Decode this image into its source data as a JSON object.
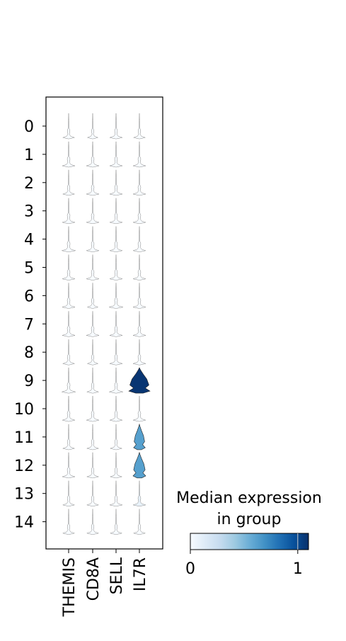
{
  "chart_data": {
    "type": "violin",
    "genes": [
      "THEMIS",
      "CD8A",
      "SELL",
      "IL7R"
    ],
    "groups": [
      "0",
      "1",
      "2",
      "3",
      "4",
      "5",
      "6",
      "7",
      "8",
      "9",
      "10",
      "11",
      "12",
      "13",
      "14"
    ],
    "colorbar": {
      "title_line1": "Median expression",
      "title_line2": "in group",
      "ticks": [
        {
          "value": 0,
          "label": "0"
        },
        {
          "value": 1,
          "label": "1"
        }
      ],
      "max": 1.1,
      "cmap": "Blues"
    },
    "median_expression": [
      [
        0.0,
        0.0,
        0.0,
        0.0
      ],
      [
        0.0,
        0.0,
        0.0,
        0.0
      ],
      [
        0.0,
        0.0,
        0.0,
        0.0
      ],
      [
        0.0,
        0.0,
        0.0,
        0.0
      ],
      [
        0.0,
        0.0,
        0.0,
        0.0
      ],
      [
        0.0,
        0.0,
        0.0,
        0.0
      ],
      [
        0.0,
        0.0,
        0.0,
        0.0
      ],
      [
        0.0,
        0.0,
        0.0,
        0.0
      ],
      [
        0.0,
        0.0,
        0.0,
        0.0
      ],
      [
        0.0,
        0.0,
        0.0,
        1.08
      ],
      [
        0.0,
        0.0,
        0.0,
        0.0
      ],
      [
        0.0,
        0.0,
        0.0,
        0.62
      ],
      [
        0.0,
        0.0,
        0.0,
        0.62
      ],
      [
        0.0,
        0.0,
        0.0,
        0.08
      ],
      [
        0.0,
        0.0,
        0.0,
        0.0
      ]
    ],
    "violin_width": [
      [
        0.55,
        0.5,
        0.6,
        0.55
      ],
      [
        0.6,
        0.6,
        0.6,
        0.6
      ],
      [
        0.55,
        0.6,
        0.6,
        0.6
      ],
      [
        0.6,
        0.6,
        0.6,
        0.6
      ],
      [
        0.65,
        0.6,
        0.6,
        0.6
      ],
      [
        0.6,
        0.6,
        0.6,
        0.6
      ],
      [
        0.6,
        0.5,
        0.65,
        0.6
      ],
      [
        0.6,
        0.6,
        0.6,
        0.6
      ],
      [
        0.55,
        0.5,
        0.6,
        0.6
      ],
      [
        0.65,
        0.55,
        0.65,
        1.0
      ],
      [
        0.6,
        0.6,
        0.6,
        0.6
      ],
      [
        0.55,
        0.55,
        0.55,
        0.55
      ],
      [
        0.6,
        0.55,
        0.55,
        0.6
      ],
      [
        0.55,
        0.55,
        0.6,
        0.6
      ],
      [
        0.55,
        0.55,
        0.55,
        0.55
      ]
    ]
  }
}
